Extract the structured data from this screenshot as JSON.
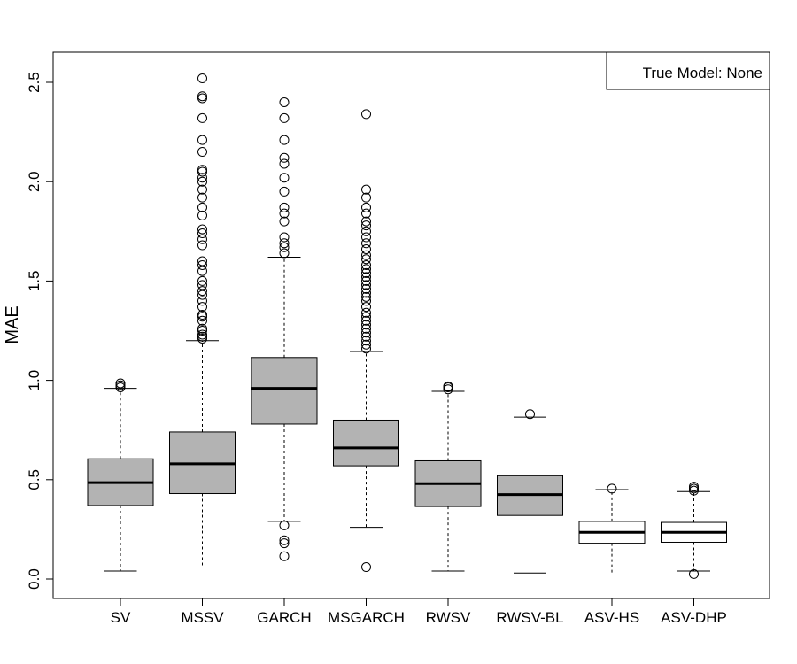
{
  "chart_data": {
    "type": "boxplot",
    "title": "",
    "xlabel": "",
    "ylabel": "MAE",
    "ylim": [
      -0.1,
      2.65
    ],
    "yticks": [
      0.0,
      0.5,
      1.0,
      1.5,
      2.0,
      2.5
    ],
    "ytick_labels": [
      "0.0",
      "0.5",
      "1.0",
      "1.5",
      "2.0",
      "2.5"
    ],
    "grid": false,
    "legend": {
      "text": "True Model: None",
      "placement": "top-right"
    },
    "colors": {
      "gray_box": "#b3b3b3",
      "white_box": "#ffffff",
      "line": "#000000"
    },
    "categories": [
      "SV",
      "MSSV",
      "GARCH",
      "MSGARCH",
      "RWSV",
      "RWSV-BL",
      "ASV-HS",
      "ASV-DHP"
    ],
    "boxes": [
      {
        "name": "SV",
        "fill": "gray",
        "whisker_low": 0.04,
        "q1": 0.37,
        "median": 0.485,
        "q3": 0.605,
        "whisker_high": 0.96,
        "outliers": [
          0.965,
          0.975,
          0.985
        ]
      },
      {
        "name": "MSSV",
        "fill": "gray",
        "whisker_low": 0.06,
        "q1": 0.43,
        "median": 0.58,
        "q3": 0.74,
        "whisker_high": 1.2,
        "outliers": [
          1.21,
          1.22,
          1.23,
          1.25,
          1.26,
          1.3,
          1.32,
          1.33,
          1.37,
          1.4,
          1.43,
          1.45,
          1.48,
          1.5,
          1.55,
          1.58,
          1.6,
          1.68,
          1.71,
          1.74,
          1.76,
          1.83,
          1.87,
          1.92,
          1.96,
          2.0,
          2.02,
          2.05,
          2.06,
          2.15,
          2.21,
          2.32,
          2.42,
          2.43,
          2.52
        ]
      },
      {
        "name": "GARCH",
        "fill": "gray",
        "whisker_low": 0.29,
        "q1": 0.78,
        "median": 0.96,
        "q3": 1.115,
        "whisker_high": 1.62,
        "outliers": [
          0.115,
          0.18,
          0.195,
          0.27,
          1.64,
          1.67,
          1.69,
          1.72,
          1.8,
          1.84,
          1.87,
          1.95,
          2.02,
          2.09,
          2.12,
          2.21,
          2.32,
          2.4
        ]
      },
      {
        "name": "MSGARCH",
        "fill": "gray",
        "whisker_low": 0.26,
        "q1": 0.57,
        "median": 0.66,
        "q3": 0.8,
        "whisker_high": 1.145,
        "outliers": [
          0.06,
          1.16,
          1.18,
          1.2,
          1.22,
          1.24,
          1.26,
          1.28,
          1.3,
          1.32,
          1.34,
          1.37,
          1.4,
          1.42,
          1.44,
          1.46,
          1.48,
          1.5,
          1.52,
          1.54,
          1.56,
          1.58,
          1.61,
          1.63,
          1.66,
          1.69,
          1.72,
          1.75,
          1.78,
          1.8,
          1.84,
          1.87,
          1.92,
          1.96,
          2.34
        ]
      },
      {
        "name": "RWSV",
        "fill": "gray",
        "whisker_low": 0.04,
        "q1": 0.365,
        "median": 0.48,
        "q3": 0.595,
        "whisker_high": 0.945,
        "outliers": [
          0.955,
          0.965,
          0.97
        ]
      },
      {
        "name": "RWSV-BL",
        "fill": "gray",
        "whisker_low": 0.03,
        "q1": 0.32,
        "median": 0.425,
        "q3": 0.52,
        "whisker_high": 0.815,
        "outliers": [
          0.83
        ]
      },
      {
        "name": "ASV-HS",
        "fill": "white",
        "whisker_low": 0.02,
        "q1": 0.18,
        "median": 0.235,
        "q3": 0.29,
        "whisker_high": 0.45,
        "outliers": [
          0.455
        ]
      },
      {
        "name": "ASV-DHP",
        "fill": "white",
        "whisker_low": 0.04,
        "q1": 0.185,
        "median": 0.235,
        "q3": 0.285,
        "whisker_high": 0.44,
        "outliers": [
          0.025,
          0.445,
          0.455,
          0.465
        ]
      }
    ]
  }
}
